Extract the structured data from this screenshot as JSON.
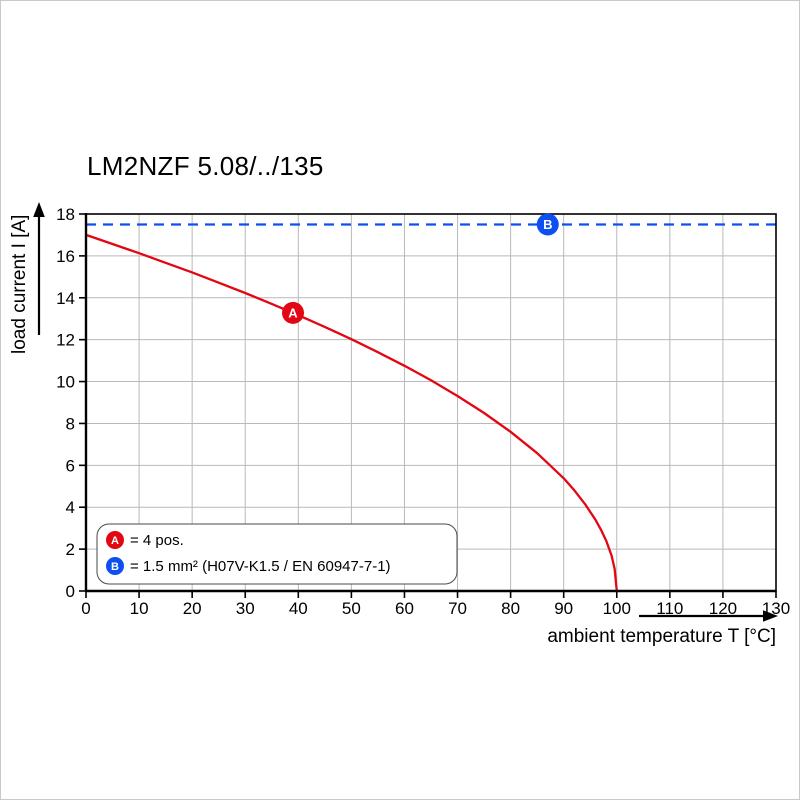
{
  "chart_data": {
    "type": "line",
    "title": "LM2NZF 5.08/../135",
    "xlabel": "ambient temperature T [°C]",
    "ylabel": "load current I [A]",
    "xlim": [
      0,
      130
    ],
    "ylim": [
      0,
      18
    ],
    "xticks": [
      0,
      10,
      20,
      30,
      40,
      50,
      60,
      70,
      80,
      90,
      100,
      110,
      120,
      130
    ],
    "yticks": [
      0,
      2,
      4,
      6,
      8,
      10,
      12,
      14,
      16,
      18
    ],
    "grid": true,
    "legend_position": "lower-left",
    "series": [
      {
        "name": "A",
        "label": "= 4 pos.",
        "color": "#e30613",
        "style": "solid",
        "marker": {
          "x": 39,
          "y": 13.28,
          "label": "A"
        },
        "points": [
          [
            0,
            17.0
          ],
          [
            5,
            16.57
          ],
          [
            10,
            16.13
          ],
          [
            15,
            15.67
          ],
          [
            20,
            15.21
          ],
          [
            25,
            14.72
          ],
          [
            30,
            14.23
          ],
          [
            35,
            13.71
          ],
          [
            40,
            13.17
          ],
          [
            45,
            12.61
          ],
          [
            50,
            12.02
          ],
          [
            55,
            11.4
          ],
          [
            60,
            10.75
          ],
          [
            65,
            10.06
          ],
          [
            70,
            9.31
          ],
          [
            75,
            8.5
          ],
          [
            80,
            7.6
          ],
          [
            85,
            6.58
          ],
          [
            90,
            5.38
          ],
          [
            92,
            4.81
          ],
          [
            94,
            4.16
          ],
          [
            96,
            3.4
          ],
          [
            97,
            2.94
          ],
          [
            98,
            2.4
          ],
          [
            99,
            1.7
          ],
          [
            99.6,
            1.07
          ],
          [
            100,
            0
          ]
        ]
      },
      {
        "name": "B",
        "label": "= 1.5 mm² (H07V-K1.5 / EN 60947-7-1)",
        "color": "#0d4ff0",
        "style": "dashed",
        "marker": {
          "x": 87,
          "y": 17.5,
          "label": "B"
        },
        "points": [
          [
            0,
            17.5
          ],
          [
            130,
            17.5
          ]
        ]
      }
    ]
  }
}
